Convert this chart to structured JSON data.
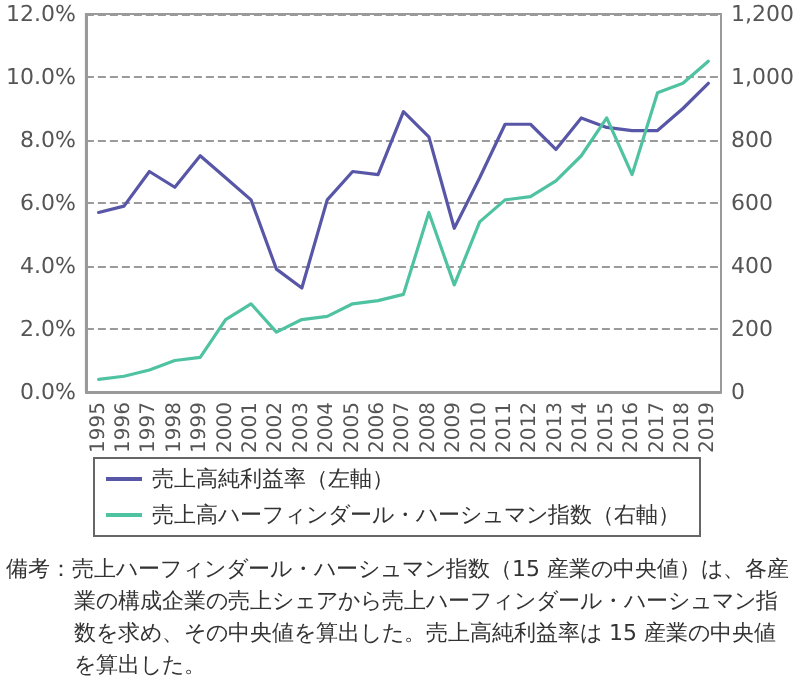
{
  "chart_data": {
    "type": "line",
    "categories": [
      "1995",
      "1996",
      "1997",
      "1998",
      "1999",
      "2000",
      "2001",
      "2002",
      "2003",
      "2004",
      "2005",
      "2006",
      "2007",
      "2008",
      "2009",
      "2010",
      "2011",
      "2012",
      "2013",
      "2014",
      "2015",
      "2016",
      "2017",
      "2018",
      "2019"
    ],
    "series": [
      {
        "name": "売上高純利益率（左軸）",
        "color": "#5856a6",
        "values": [
          5.7,
          5.9,
          7.0,
          6.5,
          7.5,
          6.8,
          6.1,
          3.9,
          3.3,
          6.1,
          7.0,
          6.9,
          8.9,
          8.1,
          5.2,
          6.8,
          8.5,
          8.5,
          7.7,
          8.7,
          8.4,
          8.3,
          8.3,
          9.0,
          9.8
        ]
      },
      {
        "name": "売上高ハーフィンダール・ハーシュマン指数（右軸）",
        "color": "#4fc3a1",
        "axis": "y2",
        "values": [
          40,
          50,
          70,
          100,
          110,
          230,
          280,
          190,
          230,
          240,
          280,
          290,
          310,
          570,
          340,
          540,
          610,
          620,
          670,
          750,
          870,
          690,
          950,
          980,
          1050
        ]
      }
    ],
    "ylim": [
      0,
      12
    ],
    "yticks": [
      {
        "value": 0,
        "label": "0.0%"
      },
      {
        "value": 2,
        "label": "2.0%"
      },
      {
        "value": 4,
        "label": "4.0%"
      },
      {
        "value": 6,
        "label": "6.0%"
      },
      {
        "value": 8,
        "label": "8.0%"
      },
      {
        "value": 10,
        "label": "10.0%"
      },
      {
        "value": 12,
        "label": "12.0%"
      }
    ],
    "y2lim": [
      0,
      1200
    ],
    "y2ticks": [
      0,
      200,
      400,
      600,
      800,
      {
        "value": 1000,
        "label": "1,000"
      },
      {
        "value": 1200,
        "label": "1,200"
      }
    ],
    "grid": "y",
    "legend": "bottom",
    "marker": "none",
    "line_style": "solid",
    "annotations": [
      "備考：売上ハーフィンダール・ハーシュマン指数（15 産業の中央値）は、各産業の構成企業の売上シェアから売上ハーフィンダール・ハーシュマン指数を求め、その中央値を算出した。売上高純利益率は 15 産業の中央値を算出した。"
    ]
  }
}
